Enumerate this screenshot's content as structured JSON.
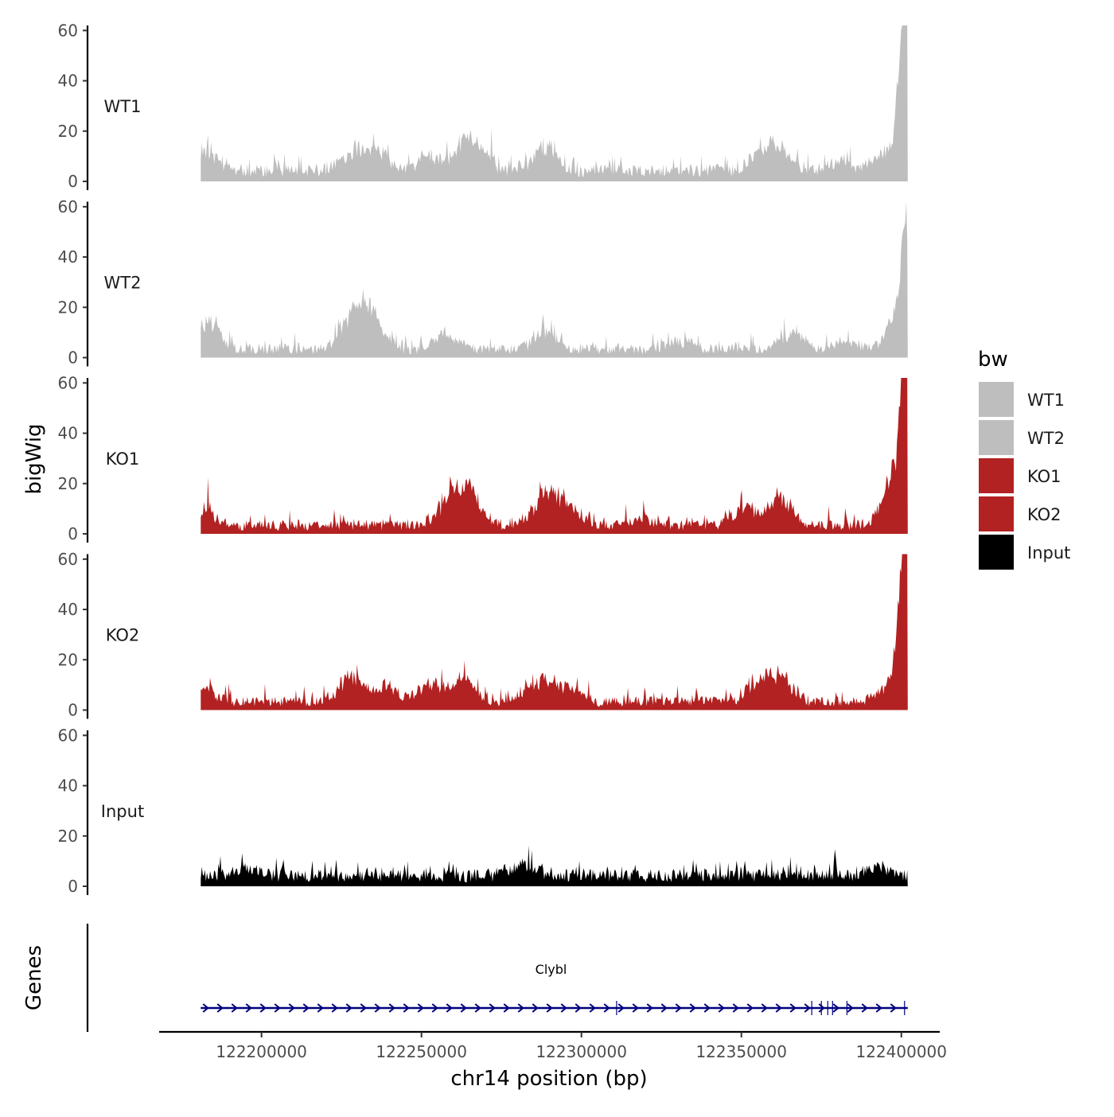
{
  "chart_data": {
    "type": "area",
    "ylabel": "bigWig",
    "xlabel": "chr14 position (bp)",
    "ylim": [
      0,
      62
    ],
    "y_ticks": [
      0,
      20,
      40,
      60
    ],
    "y_tick_labels": [
      "0",
      "20",
      "40",
      "60"
    ],
    "xlim": [
      122168000,
      122412000
    ],
    "x_ticks": [
      122200000,
      122250000,
      122300000,
      122350000,
      122400000
    ],
    "x_tick_labels": [
      "122200000",
      "122250000",
      "122300000",
      "122350000",
      "122400000"
    ],
    "data_range": [
      122181000,
      122402000
    ],
    "series": [
      {
        "name": "WT1",
        "color": "#BEBEBE",
        "baseline": 5,
        "noise": 6,
        "seed": 11,
        "peaks": [
          [
            122182500,
            12
          ],
          [
            122228000,
            9
          ],
          [
            122236000,
            10
          ],
          [
            122252000,
            8
          ],
          [
            122263000,
            12
          ],
          [
            122268000,
            8
          ],
          [
            122289000,
            11
          ],
          [
            122356000,
            8
          ],
          [
            122362000,
            10
          ],
          [
            122381000,
            5
          ],
          [
            122395000,
            10
          ],
          [
            122399000,
            22
          ],
          [
            122400800,
            40
          ],
          [
            122401600,
            58
          ]
        ]
      },
      {
        "name": "WT2",
        "color": "#BEBEBE",
        "baseline": 4,
        "noise": 5,
        "seed": 23,
        "peaks": [
          [
            122183000,
            14
          ],
          [
            122228000,
            15
          ],
          [
            122234000,
            17
          ],
          [
            122258000,
            8
          ],
          [
            122289000,
            8
          ],
          [
            122331000,
            4
          ],
          [
            122366000,
            8
          ],
          [
            122383000,
            4
          ],
          [
            122399000,
            16
          ],
          [
            122400800,
            25
          ],
          [
            122401600,
            33
          ]
        ]
      },
      {
        "name": "KO1",
        "color": "#B22222",
        "baseline": 4,
        "noise": 6,
        "seed": 37,
        "peaks": [
          [
            122181500,
            8
          ],
          [
            122259000,
            13
          ],
          [
            122265000,
            15
          ],
          [
            122289000,
            16
          ],
          [
            122296000,
            9
          ],
          [
            122318000,
            3
          ],
          [
            122351000,
            10
          ],
          [
            122362000,
            14
          ],
          [
            122397000,
            8
          ],
          [
            122399000,
            20
          ],
          [
            122400800,
            40
          ],
          [
            122401600,
            60
          ]
        ]
      },
      {
        "name": "KO2",
        "color": "#B22222",
        "baseline": 4,
        "noise": 6,
        "seed": 49,
        "peaks": [
          [
            122181500,
            8
          ],
          [
            122228000,
            12
          ],
          [
            122239000,
            8
          ],
          [
            122253000,
            9
          ],
          [
            122263000,
            10
          ],
          [
            122287000,
            11
          ],
          [
            122296000,
            7
          ],
          [
            122355000,
            8
          ],
          [
            122362000,
            13
          ],
          [
            122397000,
            10
          ],
          [
            122399000,
            22
          ],
          [
            122400800,
            36
          ],
          [
            122401600,
            57
          ]
        ]
      },
      {
        "name": "Input",
        "color": "#000000",
        "baseline": 5,
        "noise": 6,
        "seed": 61,
        "peaks": [
          [
            122195000,
            3
          ],
          [
            122282000,
            5
          ],
          [
            122393000,
            4
          ]
        ]
      }
    ],
    "genes": {
      "title": "Genes",
      "items": [
        {
          "name": "Clybl",
          "start": 122181000,
          "end": 122402000,
          "strand": "+",
          "color": "#00007F",
          "markers": [
            122311000,
            122372000,
            122375000,
            122377000,
            122378500,
            122383000,
            122401000
          ]
        }
      ]
    },
    "legend": {
      "title": "bw",
      "position": "right",
      "entries": [
        {
          "label": "WT1",
          "color": "#BEBEBE"
        },
        {
          "label": "WT2",
          "color": "#BEBEBE"
        },
        {
          "label": "KO1",
          "color": "#B22222"
        },
        {
          "label": "KO2",
          "color": "#B22222"
        },
        {
          "label": "Input",
          "color": "#000000"
        }
      ]
    }
  }
}
